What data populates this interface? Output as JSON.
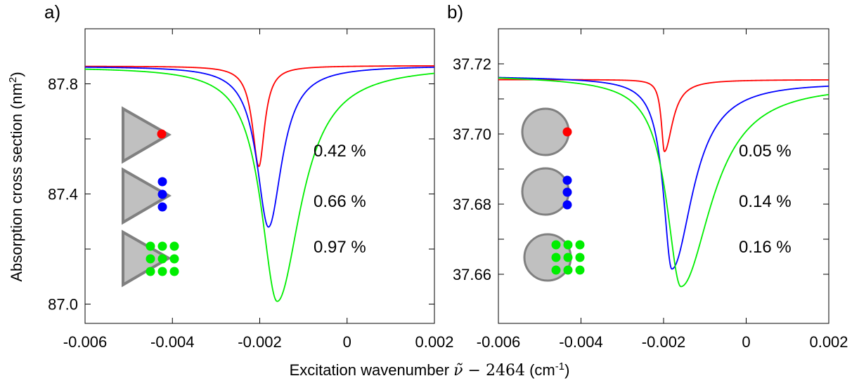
{
  "ylabel_parts": {
    "main": "Absorption cross section (nm",
    "sup": "2",
    "tail": ")"
  },
  "xlabel_parts": {
    "main": "Excitation wavenumber ",
    "symbol": "ν̃",
    "minus": " − 2464",
    "unit_open": " (cm",
    "sup": "-1",
    "unit_close": ")"
  },
  "colors": {
    "series1": "#ff0000",
    "series2": "#0000ff",
    "series3": "#00ee00",
    "shape_fill": "#c0c0c0",
    "shape_stroke": "#808080"
  },
  "icons": [
    "triangle-one-dot-icon",
    "triangle-three-dots-icon",
    "triangle-nine-dots-icon",
    "circle-one-dot-icon",
    "circle-three-dots-icon",
    "circle-nine-dots-icon"
  ],
  "chart_data": [
    {
      "type": "line",
      "panel_label": "a)",
      "xlim": [
        -0.006,
        0.002
      ],
      "ylim": [
        86.93,
        88.0
      ],
      "x_ticks": [
        -0.006,
        -0.004,
        -0.002,
        0,
        0.002
      ],
      "x_tick_labels": [
        "-0.006",
        "-0.004",
        "-0.002",
        "0",
        "0.002"
      ],
      "y_ticks": [
        87.0,
        87.2,
        87.4,
        87.6,
        87.8
      ],
      "y_tick_labels": [
        "87.0",
        "",
        "87.4",
        "",
        "87.8"
      ],
      "series": [
        {
          "baseline_left": 87.864,
          "baseline_right": 87.866,
          "dip_x": -0.00202,
          "dip_y": 87.5,
          "width": 0.00018,
          "asym_left": 1.0,
          "asym_right": 0.9,
          "annotation": "0.42 %"
        },
        {
          "baseline_left": 87.864,
          "baseline_right": 87.866,
          "dip_x": -0.0018,
          "dip_y": 87.28,
          "width": 0.00025,
          "asym_left": 1.3,
          "asym_right": 1.5,
          "annotation": "0.66 %"
        },
        {
          "baseline_left": 87.862,
          "baseline_right": 87.866,
          "dip_x": -0.0016,
          "dip_y": 87.01,
          "width": 0.0003,
          "asym_left": 1.5,
          "asym_right": 2.2,
          "annotation": "0.97 %"
        }
      ]
    },
    {
      "type": "line",
      "panel_label": "b)",
      "xlim": [
        -0.006,
        0.002
      ],
      "ylim": [
        37.646,
        37.73
      ],
      "x_ticks": [
        -0.006,
        -0.004,
        -0.002,
        0,
        0.002
      ],
      "x_tick_labels": [
        "-0.006",
        "-0.004",
        "-0.002",
        "0",
        "0.002"
      ],
      "y_ticks": [
        37.66,
        37.67,
        37.68,
        37.69,
        37.7,
        37.71,
        37.72
      ],
      "y_tick_labels": [
        "37.66",
        "",
        "37.68",
        "",
        "37.70",
        "",
        "37.72"
      ],
      "series": [
        {
          "baseline_left": 37.7155,
          "baseline_right": 37.7155,
          "dip_x": -0.00198,
          "dip_y": 37.695,
          "width": 0.0002,
          "asym_left": 0.45,
          "asym_right": 1.2,
          "annotation": "0.05 %"
        },
        {
          "baseline_left": 37.7163,
          "baseline_right": 37.715,
          "dip_x": -0.0018,
          "dip_y": 37.6615,
          "width": 0.00028,
          "asym_left": 0.9,
          "asym_right": 2.2,
          "annotation": "0.14 %"
        },
        {
          "baseline_left": 37.7165,
          "baseline_right": 37.7147,
          "dip_x": -0.00158,
          "dip_y": 37.6565,
          "width": 0.0003,
          "asym_left": 1.4,
          "asym_right": 3.0,
          "annotation": "0.16 %"
        }
      ]
    }
  ]
}
